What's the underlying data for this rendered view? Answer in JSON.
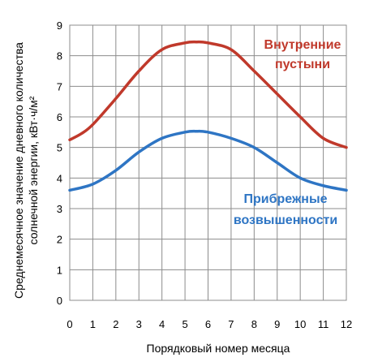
{
  "chart_data": {
    "type": "line",
    "xlabel": "Порядковый номер месяца",
    "ylabel_line1": "Среднемесячное значение дневного количества",
    "ylabel_line2": "солнечной энергии, кВт·ч/м²",
    "xlim": [
      0,
      12
    ],
    "ylim": [
      0,
      9
    ],
    "x_ticks": [
      0,
      1,
      2,
      3,
      4,
      5,
      6,
      7,
      8,
      9,
      10,
      11,
      12
    ],
    "y_ticks": [
      0,
      1,
      2,
      3,
      4,
      5,
      6,
      7,
      8,
      9
    ],
    "grid": true,
    "series": [
      {
        "name_line1": "Внутренние",
        "name_line2": "пустыни",
        "color": "#c0392b",
        "x": [
          0,
          0.5,
          1,
          2,
          3,
          4,
          5,
          5.5,
          6,
          7,
          8,
          9,
          10,
          11,
          12
        ],
        "values": [
          5.25,
          5.45,
          5.75,
          6.6,
          7.5,
          8.2,
          8.42,
          8.45,
          8.42,
          8.2,
          7.5,
          6.75,
          6.0,
          5.3,
          5.0
        ]
      },
      {
        "name_line1": "Прибрежные",
        "name_line2": "возвышенности",
        "color": "#2e75c4",
        "x": [
          0,
          1,
          2,
          3,
          4,
          5,
          5.5,
          6,
          7,
          8,
          9,
          10,
          11,
          12
        ],
        "values": [
          3.6,
          3.8,
          4.25,
          4.85,
          5.3,
          5.5,
          5.53,
          5.5,
          5.3,
          5.0,
          4.5,
          4.0,
          3.75,
          3.6
        ]
      }
    ]
  }
}
